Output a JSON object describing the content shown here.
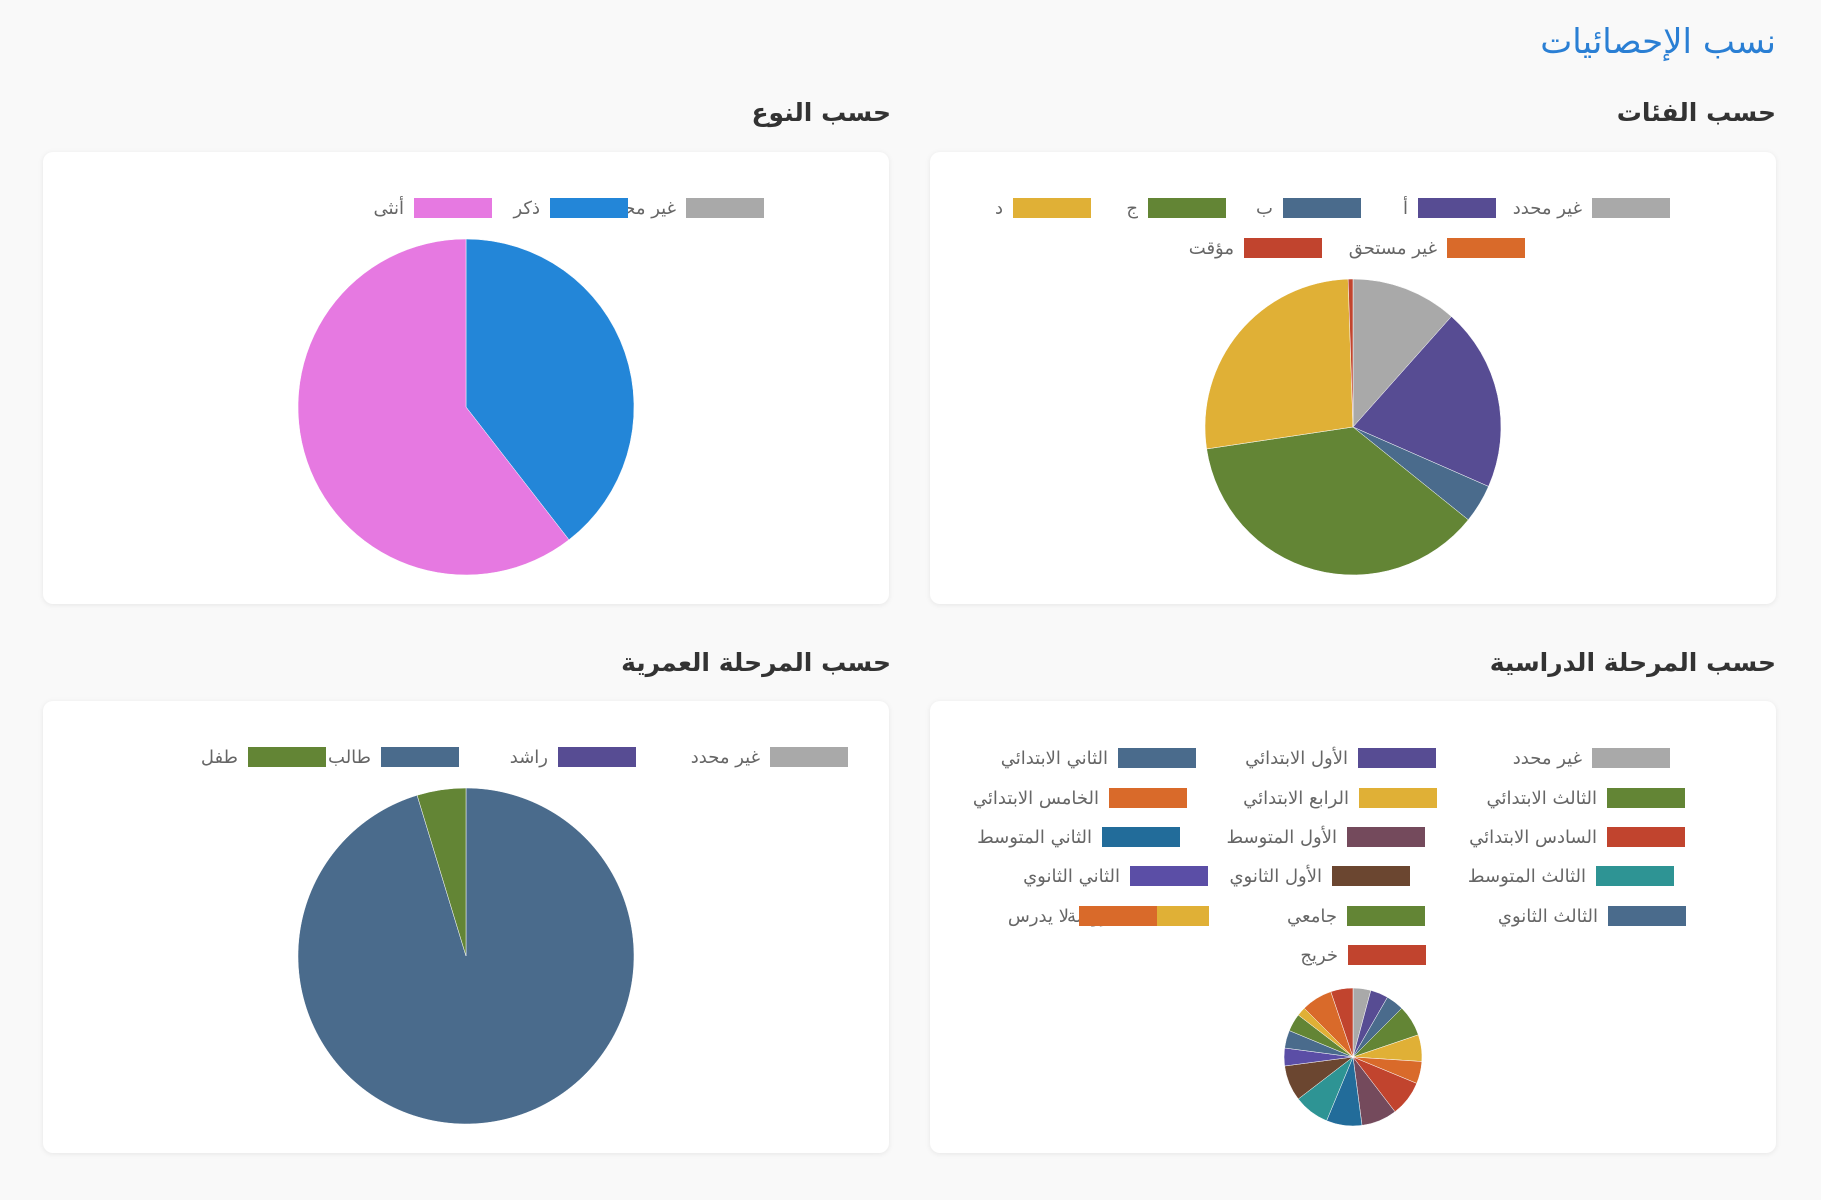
{
  "page": {
    "title": "نسب الإحصائيات"
  },
  "sections": {
    "categories": {
      "title": "حسب الفئات"
    },
    "gender": {
      "title": "حسب النوع"
    },
    "study_stage": {
      "title": "حسب المرحلة الدراسية"
    },
    "age_stage": {
      "title": "حسب المرحلة العمرية"
    }
  },
  "chart_data": [
    {
      "id": "categories",
      "type": "pie",
      "title": "حسب الفئات",
      "labels": [
        "غير محدد",
        "أ",
        "ب",
        "ج",
        "د",
        "غير مستحق",
        "مؤقت"
      ],
      "values": [
        11,
        19,
        4,
        35,
        25.5,
        0,
        0.5
      ],
      "colors": [
        "#a9a9a9",
        "#574c93",
        "#4a6b8c",
        "#638535",
        "#e0b036",
        "#d96a2a",
        "#c1442e"
      ]
    },
    {
      "id": "gender",
      "type": "pie",
      "title": "حسب النوع",
      "labels": [
        "غير محدد",
        "ذكر",
        "أنثى"
      ],
      "values": [
        0,
        39.5,
        60.5
      ],
      "colors": [
        "#a9a9a9",
        "#2386d8",
        "#e679e1"
      ]
    },
    {
      "id": "study_stage",
      "type": "pie",
      "title": "حسب المرحلة الدراسية",
      "labels": [
        "غير محدد",
        "الأول الابتدائي",
        "الثاني الابتدائي",
        "الثالث الابتدائي",
        "الرابع الابتدائي",
        "الخامس الابتدائي",
        "السادس الابتدائي",
        "الأول المتوسط",
        "الثاني المتوسط",
        "الثالث المتوسط",
        "الأول الثانوي",
        "الثاني الثانوي",
        "الثالث الثانوي",
        "جامعي",
        "الروضة",
        "لا يدرس",
        "خريج"
      ],
      "values": [
        4,
        4,
        4,
        7,
        6,
        5,
        8,
        8,
        8,
        8,
        8,
        4,
        4,
        4,
        2,
        7,
        5
      ],
      "colors": [
        "#a9a9a9",
        "#574c93",
        "#4a6b8c",
        "#638535",
        "#e0b036",
        "#d96a2a",
        "#c1442e",
        "#744a5c",
        "#226c9a",
        "#2e9494",
        "#6b4630",
        "#5b4ea6",
        "#4a6b8c",
        "#638535",
        "#e0b036",
        "#d96a2a",
        "#c1442e"
      ]
    },
    {
      "id": "age_stage",
      "type": "pie",
      "title": "حسب المرحلة العمرية",
      "labels": [
        "غير محدد",
        "راشد",
        "طالب",
        "طفل"
      ],
      "values": [
        0,
        0,
        95.3,
        4.7
      ],
      "colors": [
        "#a9a9a9",
        "#574c93",
        "#4a6b8c",
        "#638535"
      ]
    }
  ]
}
